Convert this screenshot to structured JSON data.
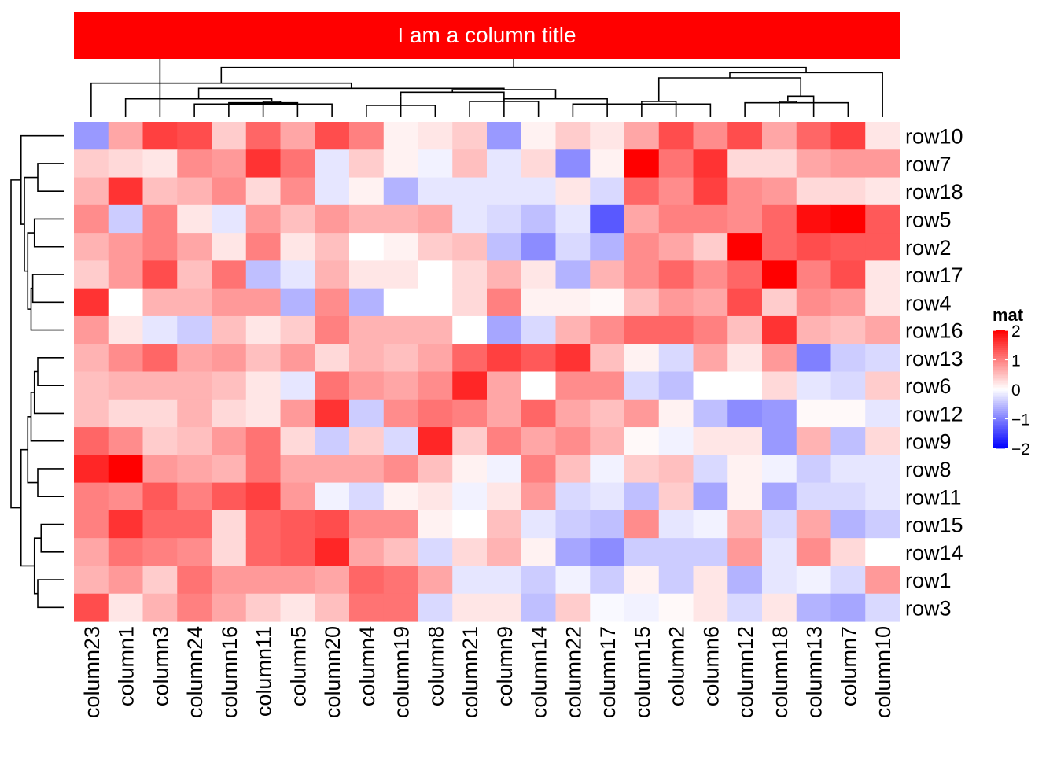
{
  "chart_data": {
    "type": "heatmap",
    "title": "I am a column title",
    "title_bar_color": "#ff0000",
    "columns": [
      "column23",
      "column1",
      "column3",
      "column24",
      "column16",
      "column11",
      "column5",
      "column20",
      "column4",
      "column19",
      "column8",
      "column21",
      "column9",
      "column14",
      "column22",
      "column17",
      "column15",
      "column2",
      "column6",
      "column12",
      "column18",
      "column13",
      "column7",
      "column10"
    ],
    "rows": [
      "row10",
      "row7",
      "row18",
      "row5",
      "row2",
      "row17",
      "row4",
      "row16",
      "row13",
      "row6",
      "row12",
      "row9",
      "row8",
      "row11",
      "row15",
      "row14",
      "row1",
      "row3"
    ],
    "values": [
      [
        -0.8,
        0.7,
        1.5,
        1.4,
        0.4,
        1.2,
        0.7,
        1.4,
        1.0,
        0.1,
        0.2,
        0.4,
        -0.8,
        0.1,
        0.4,
        0.2,
        0.7,
        1.4,
        0.9,
        1.4,
        0.7,
        1.2,
        1.5,
        0.2
      ],
      [
        0.4,
        0.3,
        0.2,
        0.9,
        0.8,
        1.6,
        1.1,
        -0.2,
        0.4,
        0.1,
        -0.1,
        0.5,
        -0.2,
        0.3,
        -0.9,
        0.1,
        2.0,
        1.1,
        1.6,
        0.3,
        0.3,
        0.7,
        0.8,
        0.8
      ],
      [
        0.6,
        1.6,
        0.5,
        0.6,
        0.9,
        0.3,
        0.9,
        -0.2,
        0.1,
        -0.6,
        -0.2,
        -0.2,
        -0.2,
        -0.2,
        0.2,
        -0.3,
        1.2,
        0.9,
        1.5,
        0.9,
        0.8,
        0.3,
        0.3,
        0.2
      ],
      [
        0.9,
        -0.4,
        1.0,
        0.2,
        -0.2,
        0.8,
        0.5,
        0.8,
        0.6,
        0.6,
        0.7,
        -0.2,
        -0.3,
        -0.5,
        -0.2,
        -1.3,
        0.7,
        1.0,
        1.0,
        0.9,
        1.2,
        1.9,
        2.0,
        1.3
      ],
      [
        0.6,
        0.8,
        1.0,
        0.7,
        0.2,
        1.0,
        0.2,
        0.5,
        0.0,
        0.1,
        0.4,
        0.5,
        -0.5,
        -0.9,
        -0.3,
        -0.6,
        0.9,
        0.7,
        0.4,
        2.0,
        1.2,
        1.4,
        1.3,
        1.3
      ],
      [
        0.4,
        0.8,
        1.4,
        0.5,
        1.1,
        -0.5,
        -0.2,
        0.6,
        0.2,
        0.2,
        0.0,
        0.3,
        0.6,
        0.2,
        -0.6,
        0.6,
        0.9,
        1.2,
        0.9,
        1.2,
        2.0,
        1.0,
        1.4,
        0.2
      ],
      [
        1.6,
        0.0,
        0.6,
        0.6,
        0.8,
        0.8,
        -0.6,
        0.9,
        -0.6,
        0.0,
        0.0,
        0.3,
        1.0,
        0.1,
        0.1,
        0.05,
        0.5,
        0.8,
        0.7,
        1.4,
        0.4,
        0.9,
        0.8,
        0.2
      ],
      [
        0.8,
        0.2,
        -0.2,
        -0.4,
        0.5,
        0.2,
        0.4,
        1.0,
        0.6,
        0.6,
        0.6,
        0.0,
        -0.7,
        -0.3,
        0.6,
        0.9,
        1.2,
        1.2,
        1.0,
        0.5,
        1.6,
        0.6,
        0.5,
        0.7
      ],
      [
        0.6,
        0.9,
        1.2,
        0.7,
        0.8,
        0.5,
        0.8,
        0.3,
        0.6,
        0.5,
        0.7,
        1.2,
        1.5,
        1.3,
        1.6,
        0.5,
        0.1,
        -0.3,
        0.7,
        0.2,
        0.8,
        -1.0,
        -0.4,
        -0.3
      ],
      [
        0.5,
        0.6,
        0.6,
        0.6,
        0.5,
        0.2,
        -0.2,
        1.1,
        0.8,
        0.7,
        0.9,
        1.7,
        0.7,
        0.0,
        0.9,
        0.9,
        -0.3,
        -0.5,
        0.0,
        0.0,
        0.3,
        -0.2,
        -0.3,
        0.4
      ],
      [
        0.5,
        0.3,
        0.3,
        0.6,
        0.3,
        0.2,
        0.8,
        1.6,
        -0.4,
        0.9,
        1.1,
        1.0,
        0.7,
        1.2,
        0.7,
        0.5,
        0.8,
        0.1,
        -0.5,
        -0.9,
        -0.8,
        0.05,
        0.05,
        -0.2
      ],
      [
        1.2,
        0.9,
        0.4,
        0.5,
        0.8,
        1.1,
        0.3,
        -0.4,
        0.4,
        -0.3,
        1.7,
        0.4,
        1.0,
        0.7,
        0.9,
        0.6,
        0.05,
        -0.1,
        0.2,
        0.2,
        -0.8,
        0.6,
        -0.5,
        0.3
      ],
      [
        1.7,
        2.0,
        0.8,
        0.7,
        0.6,
        1.1,
        0.7,
        0.7,
        0.7,
        0.9,
        0.5,
        0.1,
        -0.1,
        1.0,
        0.5,
        -0.1,
        0.4,
        0.5,
        -0.3,
        0.1,
        -0.1,
        -0.4,
        -0.2,
        -0.2
      ],
      [
        1.0,
        0.9,
        1.3,
        1.0,
        1.3,
        1.5,
        0.8,
        -0.1,
        -0.3,
        0.1,
        0.2,
        -0.1,
        0.2,
        0.8,
        -0.3,
        -0.2,
        -0.5,
        0.4,
        -0.7,
        0.1,
        -0.7,
        -0.3,
        -0.3,
        -0.2
      ],
      [
        1.0,
        1.6,
        1.2,
        1.2,
        0.3,
        1.2,
        1.3,
        1.4,
        0.9,
        0.9,
        0.1,
        0.0,
        0.5,
        -0.2,
        -0.4,
        -0.5,
        0.9,
        -0.2,
        -0.1,
        0.6,
        -0.3,
        0.7,
        -0.6,
        -0.4
      ],
      [
        0.7,
        1.1,
        1.0,
        0.9,
        0.3,
        1.2,
        1.3,
        1.7,
        0.7,
        0.5,
        -0.3,
        0.3,
        0.6,
        0.1,
        -0.7,
        -0.9,
        -0.4,
        -0.4,
        -0.4,
        0.8,
        -0.2,
        0.9,
        0.3,
        0.0
      ],
      [
        0.6,
        0.8,
        0.4,
        1.1,
        0.8,
        0.8,
        0.8,
        0.7,
        1.2,
        1.1,
        0.7,
        -0.2,
        -0.2,
        -0.4,
        -0.1,
        -0.4,
        0.1,
        -0.4,
        0.2,
        -0.6,
        -0.2,
        -0.1,
        -0.3,
        0.8
      ],
      [
        1.4,
        0.2,
        0.6,
        1.0,
        0.7,
        0.4,
        0.2,
        0.5,
        1.1,
        1.1,
        -0.3,
        0.2,
        0.2,
        -0.5,
        0.4,
        -0.05,
        -0.1,
        0.05,
        0.2,
        -0.3,
        0.2,
        -0.6,
        -0.7,
        -0.3
      ]
    ],
    "color_scale": {
      "min": -2,
      "mid": 0,
      "max": 2,
      "low": "#0000ff",
      "mid_color": "#ffffff",
      "high": "#ff0000"
    },
    "legend": {
      "title": "mat",
      "ticks": [
        2,
        1,
        0,
        -1,
        -2
      ],
      "placement": "right"
    },
    "column_dendrogram": {
      "merges": [
        [
          -4,
          -6,
          0.5
        ],
        [
          -5,
          -8,
          0.5
        ],
        [
          -7,
          1,
          0.55
        ],
        [
          2,
          3,
          0.6
        ],
        [
          -2,
          4,
          0.7
        ],
        [
          -9,
          -11,
          0.45
        ],
        [
          -12,
          -14,
          0.6
        ],
        [
          -13,
          -16,
          0.7
        ],
        [
          -10,
          6,
          0.8
        ],
        [
          7,
          9,
          0.95
        ],
        [
          8,
          10,
          1.05
        ],
        [
          -15,
          -19,
          0.5
        ],
        [
          -17,
          12,
          0.55
        ],
        [
          -18,
          13,
          0.6
        ],
        [
          -20,
          -23,
          0.55
        ],
        [
          -21,
          15,
          0.6
        ],
        [
          -22,
          16,
          0.8
        ],
        [
          5,
          11,
          1.1
        ],
        [
          -1,
          18,
          1.3
        ],
        [
          14,
          17,
          1.5
        ],
        [
          -24,
          20,
          1.7
        ],
        [
          19,
          21,
          1.9
        ],
        [
          22,
          -3,
          2.4
        ]
      ]
    },
    "row_dendrogram": {
      "merges": [
        [
          -2,
          -3,
          0.8
        ],
        [
          -4,
          -5,
          0.9
        ],
        [
          -6,
          -7,
          0.95
        ],
        [
          -8,
          3,
          1.0
        ],
        [
          2,
          4,
          1.1
        ],
        [
          1,
          5,
          1.2
        ],
        [
          -1,
          6,
          1.3
        ],
        [
          -9,
          -10,
          0.8
        ],
        [
          -11,
          8,
          0.9
        ],
        [
          -12,
          9,
          1.0
        ],
        [
          -13,
          -14,
          0.8
        ],
        [
          10,
          11,
          1.1
        ],
        [
          -15,
          -16,
          0.7
        ],
        [
          -17,
          -18,
          0.8
        ],
        [
          13,
          14,
          0.9
        ],
        [
          12,
          15,
          1.3
        ],
        [
          7,
          16,
          1.6
        ]
      ]
    }
  }
}
